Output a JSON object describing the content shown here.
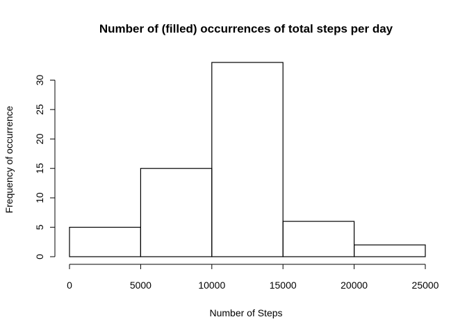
{
  "chart_data": {
    "type": "bar",
    "subtype": "histogram",
    "title": "Number of (filled) occurrences of total steps per day",
    "xlabel": "Number of Steps",
    "ylabel": "Frequency of occurrence",
    "bins": [
      {
        "start": 0,
        "end": 5000,
        "value": 5
      },
      {
        "start": 5000,
        "end": 10000,
        "value": 15
      },
      {
        "start": 10000,
        "end": 15000,
        "value": 33
      },
      {
        "start": 15000,
        "end": 20000,
        "value": 6
      },
      {
        "start": 20000,
        "end": 25000,
        "value": 2
      }
    ],
    "xlim": [
      0,
      25000
    ],
    "ylim": [
      0,
      33
    ],
    "x_ticks": [
      "0",
      "5000",
      "10000",
      "15000",
      "20000",
      "25000"
    ],
    "y_ticks": [
      "0",
      "5",
      "10",
      "15",
      "20",
      "25",
      "30"
    ],
    "grid": false,
    "legend": "none",
    "bar_fill": "#ffffff",
    "bar_stroke": "#000000"
  }
}
